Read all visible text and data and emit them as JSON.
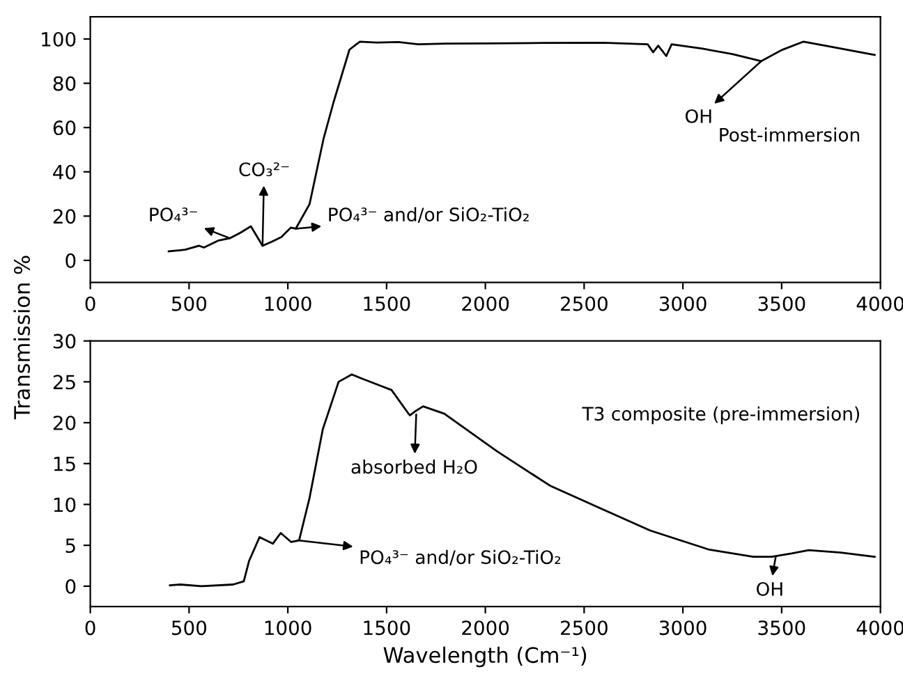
{
  "chart_data": [
    {
      "type": "line",
      "color": "#000000",
      "x": [
        397,
        480,
        551,
        575,
        650,
        706,
        760,
        813,
        872,
        920,
        967,
        1015,
        1040,
        1110,
        1181,
        1231,
        1312,
        1365,
        1450,
        1560,
        1660,
        1800,
        2000,
        2300,
        2595,
        2822,
        2849,
        2875,
        2916,
        2943,
        3100,
        3250,
        3397,
        3500,
        3611,
        3750,
        3900,
        3971
      ],
      "values": [
        4.1,
        4.8,
        6.6,
        5.8,
        9.0,
        10.0,
        12.5,
        15.4,
        6.6,
        8.5,
        10.5,
        14.8,
        14.3,
        25.4,
        55,
        71.3,
        95.2,
        98.8,
        98.4,
        98.6,
        97.6,
        97.9,
        98.0,
        98.2,
        98.3,
        97.6,
        94,
        97,
        92.3,
        97.6,
        95.6,
        93.2,
        90,
        95,
        98.8,
        96.5,
        94,
        92.8
      ],
      "xlim": [
        0,
        4000
      ],
      "xticks": [
        0,
        500,
        1000,
        1500,
        2000,
        2500,
        3000,
        3500,
        4000
      ],
      "ylim": [
        -10,
        110
      ],
      "yticks": [
        0,
        20,
        40,
        60,
        80,
        100
      ],
      "ylabel": "Transmission %",
      "grid": false,
      "legend": false,
      "annotations": [
        {
          "text": "PO₄³⁻",
          "x": 706,
          "y": 10.0
        },
        {
          "text": "CO₃²⁻",
          "x": 872,
          "y": 6.6
        },
        {
          "text": "PO₄³⁻ and/or SiO₂-TiO₂",
          "x": 1040,
          "y": 14.3
        },
        {
          "text": "OH",
          "x": 3397,
          "y": 90
        },
        "Post-immersion"
      ]
    },
    {
      "type": "line",
      "color": "#000000",
      "x": [
        403,
        456,
        563,
        723,
        777,
        804,
        857,
        924,
        964,
        1017,
        1057,
        1110,
        1177,
        1257,
        1324,
        1364,
        1471,
        1525,
        1605,
        1618,
        1645,
        1685,
        1792,
        2059,
        2327,
        2594,
        2835,
        3129,
        3356,
        3450,
        3550,
        3637,
        3800,
        3971
      ],
      "values": [
        0.1,
        0.2,
        0,
        0.2,
        0.6,
        3.1,
        6.0,
        5.2,
        6.5,
        5.4,
        5.6,
        10.8,
        19.2,
        25.0,
        25.9,
        25.5,
        24.5,
        24.0,
        21.3,
        20.9,
        21.4,
        22.0,
        21.1,
        16.5,
        12.3,
        9.4,
        6.8,
        4.5,
        3.6,
        3.6,
        4.0,
        4.4,
        4.1,
        3.6
      ],
      "xlim": [
        0,
        4000
      ],
      "xticks": [
        0,
        500,
        1000,
        1500,
        2000,
        2500,
        3000,
        3500,
        4000
      ],
      "ylim": [
        -2.5,
        30
      ],
      "yticks": [
        0,
        5,
        10,
        15,
        20,
        25,
        30
      ],
      "xlabel": "Wavelength (Cm⁻¹)",
      "grid": false,
      "legend": false,
      "annotations": [
        {
          "text": "absorbed H₂O",
          "x": 1650,
          "y": 21.0
        },
        {
          "text": "PO₄³⁻ and/or SiO₂-TiO₂",
          "x": 1050,
          "y": 5.6
        },
        {
          "text": "OH",
          "x": 3470,
          "y": 3.6
        },
        "T3 composite (pre-immersion)"
      ]
    }
  ]
}
